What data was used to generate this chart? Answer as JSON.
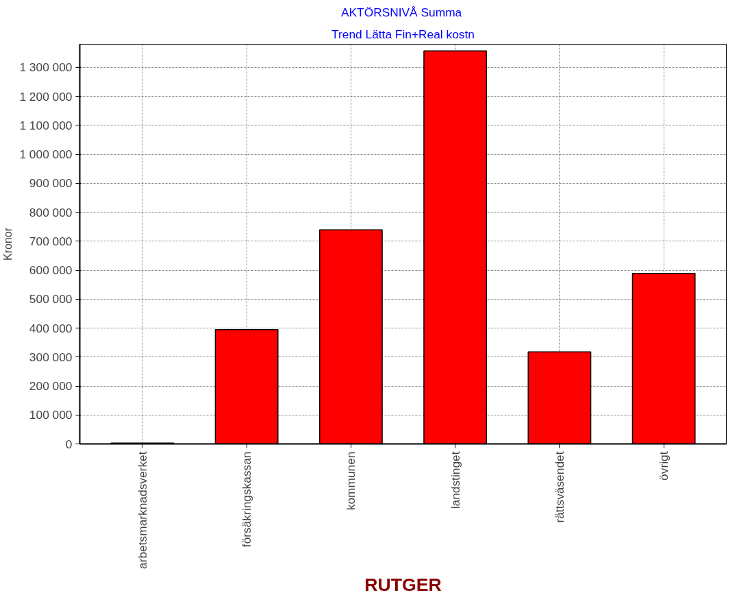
{
  "chart_data": {
    "type": "bar",
    "title": "AKTÖRSNIVÅ  Summa",
    "subtitle": "Trend Lätta Fin+Real kostn",
    "xlabel": "RUTGER",
    "ylabel": "Kronor",
    "categories": [
      "arbetsmarknadsverket",
      "försäkringskassan",
      "kommunen",
      "landstinget",
      "rättsväsendet",
      "övrigt"
    ],
    "values": [
      3000,
      395000,
      739000,
      1357000,
      318000,
      589000
    ],
    "color": "#ff0000",
    "ylim": [
      0,
      1380000
    ],
    "yticks": [
      0,
      {
        "value": 100000,
        "label": "100 000"
      },
      {
        "value": 200000,
        "label": "200 000"
      },
      {
        "value": 300000,
        "label": "300 000"
      },
      {
        "value": 400000,
        "label": "400 000"
      },
      {
        "value": 500000,
        "label": "500 000"
      },
      {
        "value": 600000,
        "label": "600 000"
      },
      {
        "value": 700000,
        "label": "700 000"
      },
      {
        "value": 800000,
        "label": "800 000"
      },
      {
        "value": 900000,
        "label": "900 000"
      },
      {
        "value": 1000000,
        "label": "1 000 000"
      },
      {
        "value": 1100000,
        "label": "1 100 000"
      },
      {
        "value": 1200000,
        "label": "1 200 000"
      },
      {
        "value": 1300000,
        "label": "1 300 000"
      }
    ],
    "grid": true
  }
}
